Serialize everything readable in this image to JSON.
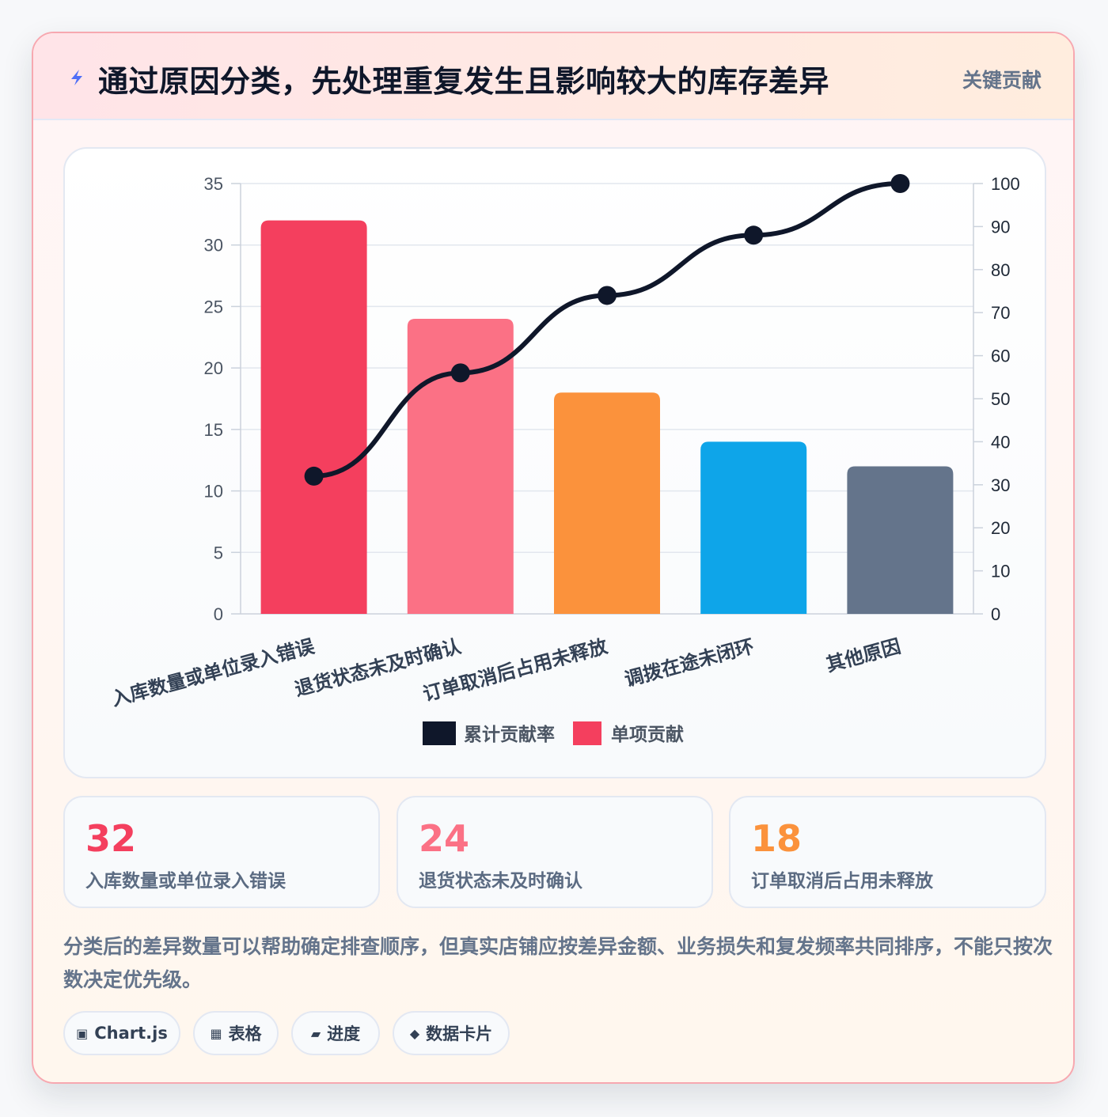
{
  "header": {
    "title": "通过原因分类，先处理重复发生且影响较大的库存差异",
    "badge": "关键贡献",
    "icon": "lightning-icon"
  },
  "chart_data": {
    "type": "bar",
    "categories": [
      "入库数量或单位录入错误",
      "退货状态未及时确认",
      "订单取消后占用未释放",
      "调拨在途未闭环",
      "其他原因"
    ],
    "series": [
      {
        "name": "单项贡献",
        "type": "bar",
        "axis": "left",
        "values": [
          32,
          24,
          18,
          14,
          12
        ],
        "colors": [
          "#f43f5e",
          "#fb7185",
          "#fb923c",
          "#0ea5e9",
          "#64748b"
        ]
      },
      {
        "name": "累计贡献率",
        "type": "line",
        "axis": "right",
        "values": [
          32,
          56,
          74,
          88,
          100
        ],
        "color": "#0f172a"
      }
    ],
    "ylim": [
      0,
      35
    ],
    "yticks": [
      0,
      5,
      10,
      15,
      20,
      25,
      30,
      35
    ],
    "y2lim": [
      0,
      100
    ],
    "y2ticks": [
      0,
      10,
      20,
      30,
      40,
      50,
      60,
      70,
      80,
      90,
      100
    ],
    "grid": true,
    "legend": {
      "placement": "bottom",
      "entries": [
        "累计贡献率",
        "单项贡献"
      ]
    }
  },
  "stats": [
    {
      "value": "32",
      "label": "入库数量或单位录入错误",
      "color": "#f43f5e"
    },
    {
      "value": "24",
      "label": "退货状态未及时确认",
      "color": "#fb7185"
    },
    {
      "value": "18",
      "label": "订单取消后占用未释放",
      "color": "#fb923c"
    }
  ],
  "note": "分类后的差异数量可以帮助确定排查顺序，但真实店铺应按差异金额、业务损失和复发频率共同排序，不能只按次数决定优先级。",
  "tags": [
    {
      "icon": "▣",
      "label": "Chart.js",
      "icon_name": "chart-icon"
    },
    {
      "icon": "▦",
      "label": "表格",
      "icon_name": "table-icon"
    },
    {
      "icon": "▰",
      "label": "进度",
      "icon_name": "progress-icon"
    },
    {
      "icon": "◆",
      "label": "数据卡片",
      "icon_name": "card-icon"
    }
  ]
}
